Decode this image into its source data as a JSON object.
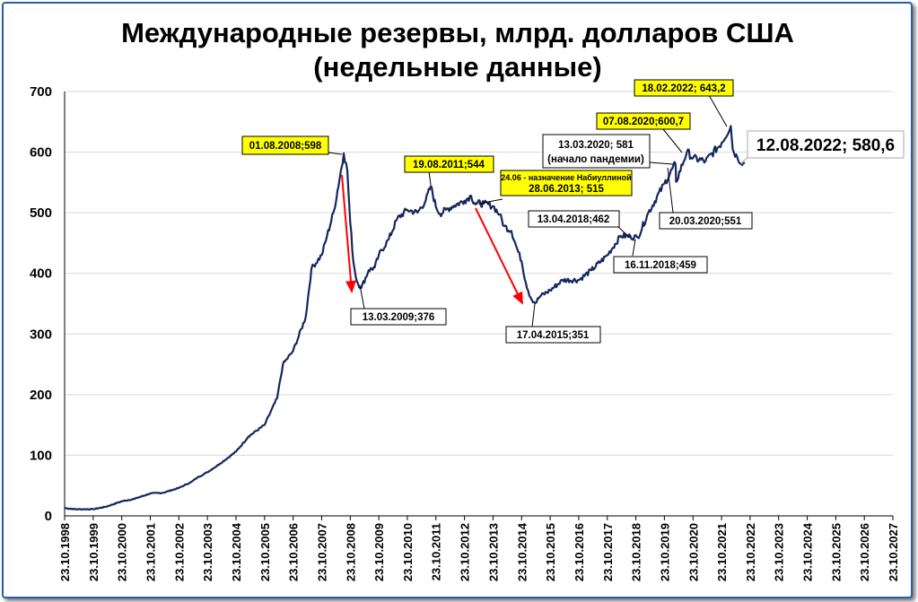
{
  "chart_data": {
    "type": "line",
    "title_line1": "Международные резервы, млрд. долларов США",
    "title_line2": "(недельные данные)",
    "xlabel": "",
    "ylabel": "",
    "ylim": [
      0,
      700
    ],
    "y_ticks": [
      "0",
      "100",
      "200",
      "300",
      "400",
      "500",
      "600",
      "700"
    ],
    "x_tick_labels": [
      "23.10.1998",
      "23.10.1999",
      "23.10.2000",
      "23.10.2001",
      "23.10.2002",
      "23.10.2003",
      "23.10.2004",
      "23.10.2005",
      "23.10.2006",
      "23.10.2007",
      "23.10.2008",
      "23.10.2009",
      "23.10.2010",
      "23.10.2011",
      "23.10.2012",
      "23.10.2013",
      "23.10.2014",
      "23.10.2015",
      "23.10.2016",
      "23.10.2017",
      "23.10.2018",
      "23.10.2019",
      "23.10.2020",
      "23.10.2021",
      "23.10.2022",
      "23.10.2023",
      "23.10.2024",
      "23.10.2025",
      "23.10.2026",
      "23.10.2027"
    ],
    "x_range": [
      "1998-10-23",
      "2027-10-23"
    ],
    "grid": "horizontal",
    "line_color": "#14285f",
    "series": [
      {
        "x": [
          "1998-10-23",
          "1999-03-01",
          "1999-10-23",
          "2000-04-01",
          "2000-10-23",
          "2001-04-01",
          "2001-10-23",
          "2002-04-01",
          "2002-10-23",
          "2003-04-01",
          "2003-06-15",
          "2003-10-23",
          "2004-04-01",
          "2004-10-23",
          "2005-04-01",
          "2005-10-23",
          "2006-04-01",
          "2006-06-15",
          "2006-10-23",
          "2007-04-01",
          "2007-06-15",
          "2007-10-23",
          "2008-01-01",
          "2008-04-01",
          "2008-08-01",
          "2008-09-15",
          "2008-10-23",
          "2008-12-01",
          "2009-01-15",
          "2009-03-13",
          "2009-06-15",
          "2009-09-01",
          "2009-10-23",
          "2010-03-01",
          "2010-06-15",
          "2010-10-23",
          "2011-03-01",
          "2011-06-15",
          "2011-08-19",
          "2011-10-23",
          "2011-12-15",
          "2012-03-01",
          "2012-06-15",
          "2012-10-23",
          "2013-01-15",
          "2013-03-01",
          "2013-06-28",
          "2013-10-23",
          "2014-01-15",
          "2014-03-15",
          "2014-06-15",
          "2014-08-15",
          "2014-10-23",
          "2014-12-15",
          "2015-02-15",
          "2015-04-17",
          "2015-06-15",
          "2015-10-23",
          "2016-04-01",
          "2016-10-23",
          "2017-04-01",
          "2017-10-23",
          "2018-04-13",
          "2018-08-15",
          "2018-11-16",
          "2019-04-01",
          "2019-10-23",
          "2020-03-13",
          "2020-03-20",
          "2020-08-07",
          "2020-10-23",
          "2021-04-01",
          "2021-10-23",
          "2022-02-18",
          "2022-03-15",
          "2022-05-15",
          "2022-08-12"
        ],
        "y": [
          13,
          11,
          11,
          15,
          24,
          28,
          37,
          38,
          46,
          56,
          63,
          72,
          86,
          106,
          131,
          150,
          194,
          250,
          272,
          327,
          408,
          430,
          462,
          505,
          598,
          570,
          484,
          420,
          387,
          376,
          405,
          410,
          430,
          457,
          490,
          505,
          500,
          520,
          544,
          510,
          498,
          505,
          512,
          520,
          528,
          516,
          515,
          511,
          497,
          478,
          470,
          445,
          420,
          385,
          360,
          351,
          362,
          372,
          389,
          389,
          405,
          430,
          462,
          461,
          459,
          500,
          548,
          581,
          551,
          600.7,
          590,
          585,
          615,
          643.2,
          605,
          590,
          580.6
        ]
      }
    ],
    "annotations": [
      {
        "id": "peak_2008",
        "text": "01.08.2008;598",
        "style": "yellow"
      },
      {
        "id": "low_2009",
        "text": "13.03.2009;376",
        "style": "white"
      },
      {
        "id": "peak_2011",
        "text": "19.08.2011;544",
        "style": "yellow"
      },
      {
        "id": "nabiullina_line1",
        "text": "24.06 - назначение Набиуллиной",
        "style": "yellow"
      },
      {
        "id": "nabiullina_line2",
        "text": "28.06.2013; 515",
        "style": "yellow"
      },
      {
        "id": "low_2015",
        "text": "17.04.2015;351",
        "style": "white"
      },
      {
        "id": "point_2018_04",
        "text": "13.04.2018;462",
        "style": "white"
      },
      {
        "id": "point_2018_11",
        "text": "16.11.2018;459",
        "style": "white"
      },
      {
        "id": "pandemic_line1",
        "text": "13.03.2020; 581",
        "style": "white"
      },
      {
        "id": "pandemic_line2",
        "text": "(начало пандемии)",
        "style": "white"
      },
      {
        "id": "point_2020_03_20",
        "text": "20.03.2020;551",
        "style": "white"
      },
      {
        "id": "peak_2020",
        "text": "07.08.2020;600,7",
        "style": "yellow"
      },
      {
        "id": "peak_2022",
        "text": "18.02.2022; 643,2",
        "style": "yellow"
      },
      {
        "id": "last_2022",
        "text": "12.08.2022; 580,6",
        "style": "white"
      }
    ],
    "arrows_color": "#ff0000"
  }
}
